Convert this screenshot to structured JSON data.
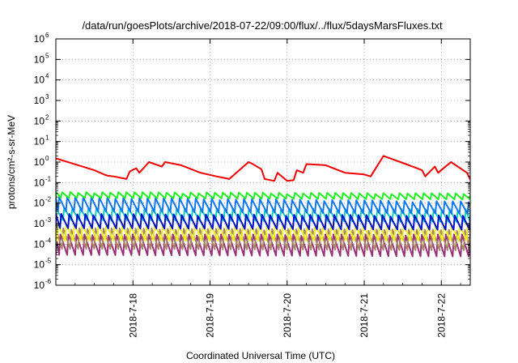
{
  "chart_data": {
    "type": "line",
    "title": "/data/run/goesPlots/archive/2018-07-22/09:00/flux/../flux/5daysMarsFluxes.txt",
    "xlabel": "Coordinated Universal Time (UTC)",
    "ylabel": "protons/cm²-s-sr-MeV",
    "y_scale": "log",
    "ylim": [
      1e-06,
      1000000.0
    ],
    "xlim": [
      "2018-07-17 00:00",
      "2018-07-22 09:00"
    ],
    "x_tick_labels": [
      "2018-7-18",
      "2018-7-19",
      "2018-7-20",
      "2018-7-21",
      "2018-7-22"
    ],
    "y_tick_labels": [
      "10^-6",
      "10^-5",
      "10^-4",
      "10^-3",
      "10^-2",
      "10^-1",
      "10^0",
      "10^1",
      "10^2",
      "10^3",
      "10^4",
      "10^5",
      "10^6"
    ],
    "grid": true,
    "legend": "none",
    "series": [
      {
        "color": "#ee0000",
        "x": [
          "2018-07-17 00:00",
          "2018-07-17 12:00",
          "2018-07-17 15:00",
          "2018-07-17 16:00",
          "2018-07-17 18:00",
          "2018-07-17 22:00",
          "2018-07-17 23:00",
          "2018-07-18 01:00",
          "2018-07-18 02:00",
          "2018-07-18 05:00",
          "2018-07-18 09:00",
          "2018-07-18 10:00",
          "2018-07-18 15:00",
          "2018-07-18 21:00",
          "2018-07-19 02:00",
          "2018-07-19 06:00",
          "2018-07-19 12:00",
          "2018-07-19 13:00",
          "2018-07-19 16:00",
          "2018-07-19 17:00",
          "2018-07-19 20:00",
          "2018-07-19 21:00",
          "2018-07-20 00:00",
          "2018-07-20 02:00",
          "2018-07-20 03:00",
          "2018-07-20 05:00",
          "2018-07-20 06:00",
          "2018-07-20 12:00",
          "2018-07-20 18:00",
          "2018-07-21 00:00",
          "2018-07-21 02:00",
          "2018-07-21 06:00",
          "2018-07-21 13:00",
          "2018-07-21 18:00",
          "2018-07-21 19:00",
          "2018-07-21 22:00",
          "2018-07-21 23:00",
          "2018-07-22 03:00",
          "2018-07-22 08:00",
          "2018-07-22 09:00"
        ],
        "values": [
          1.5,
          0.4,
          0.25,
          0.22,
          0.2,
          0.15,
          0.35,
          0.5,
          0.3,
          1.0,
          0.6,
          1.0,
          0.7,
          0.3,
          0.2,
          0.15,
          1.0,
          0.85,
          0.45,
          0.15,
          0.12,
          0.3,
          0.12,
          0.13,
          0.4,
          0.3,
          0.8,
          0.7,
          0.3,
          0.25,
          0.2,
          2.0,
          0.8,
          0.4,
          0.2,
          0.6,
          0.3,
          1.0,
          0.3,
          0.14
        ]
      },
      {
        "color": "#22ee22",
        "x": [
          "2018-07-17 00:00",
          "2018-07-22 09:00"
        ],
        "values": [
          0.018,
          0.015
        ],
        "low": [
          0.018,
          0.015
        ],
        "high": [
          0.035,
          0.03
        ]
      },
      {
        "color": "#1177ee",
        "x": [
          "2018-07-17 00:00",
          "2018-07-22 09:00"
        ],
        "values": [
          0.01,
          0.003
        ],
        "low": [
          0.004,
          0.003
        ],
        "high": [
          0.02,
          0.012
        ]
      },
      {
        "color": "#11ccbb",
        "x": [
          "2018-07-17 00:00",
          "2018-07-22 09:00"
        ],
        "values": [
          0.0015,
          0.0012
        ],
        "low": [
          0.0015,
          0.0012
        ],
        "high": [
          0.006,
          0.005
        ]
      },
      {
        "color": "#0011cc",
        "x": [
          "2018-07-17 00:00",
          "2018-07-22 09:00"
        ],
        "values": [
          0.0012,
          0.0008
        ],
        "low": [
          0.0006,
          0.0005
        ],
        "high": [
          0.003,
          0.0025
        ]
      },
      {
        "color": "#eeee22",
        "x": [
          "2018-07-17 00:00",
          "2018-07-22 09:00"
        ],
        "values": [
          0.0005,
          0.0004
        ],
        "low": [
          0.00015,
          0.00015
        ],
        "high": [
          0.001,
          0.0009
        ]
      },
      {
        "color": "#aa8866",
        "x": [
          "2018-07-17 00:00",
          "2018-07-22 09:00"
        ],
        "values": [
          0.0002,
          0.0002
        ],
        "low": [
          6e-05,
          5e-05
        ],
        "high": [
          0.0006,
          0.0005
        ]
      },
      {
        "color": "#993377",
        "x": [
          "2018-07-17 00:00",
          "2018-07-22 09:00"
        ],
        "values": [
          8e-05,
          5e-05
        ],
        "low": [
          3e-05,
          2.5e-05
        ],
        "high": [
          0.0003,
          0.0003
        ]
      }
    ]
  }
}
